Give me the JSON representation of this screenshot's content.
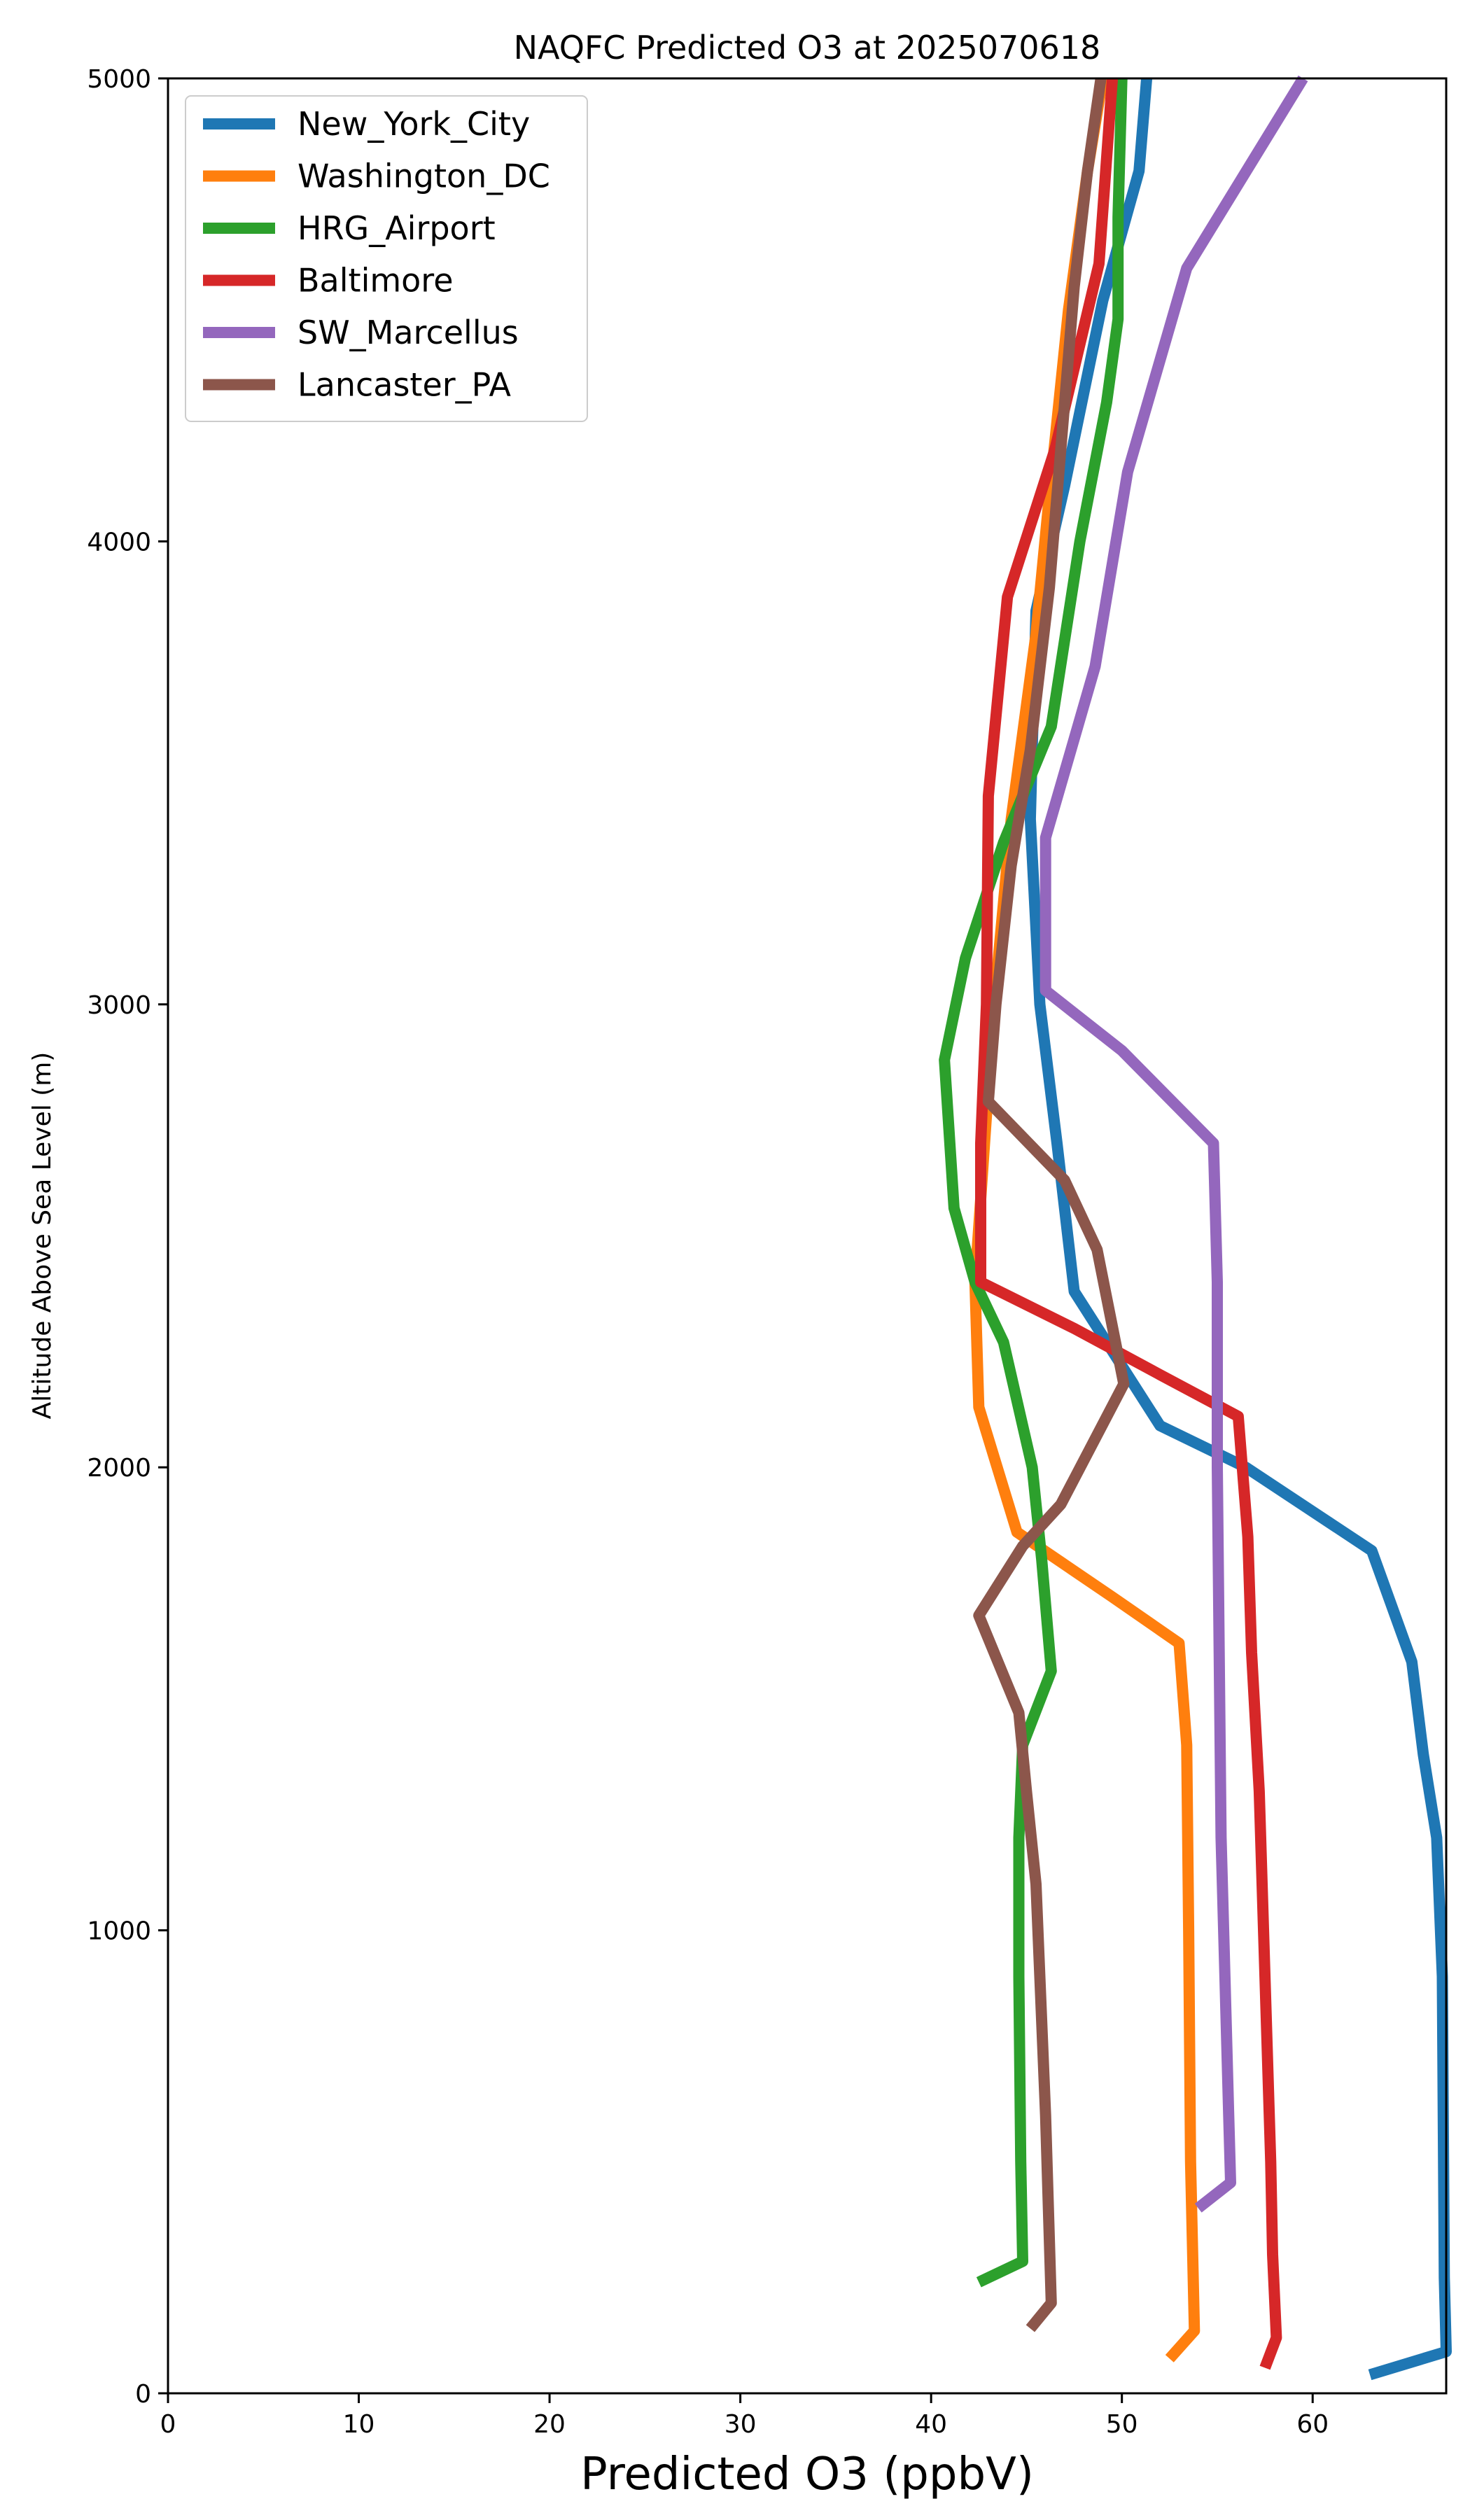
{
  "chart_data": {
    "type": "line",
    "title": "NAQFC Predicted O3 at 2025070618",
    "xlabel": "Predicted O3 (ppbV)",
    "ylabel": "Altitude Above Sea Level (m)",
    "xlim": [
      0,
      67
    ],
    "ylim": [
      0,
      5000
    ],
    "x_ticks": [
      0,
      10,
      20,
      30,
      40,
      50,
      60
    ],
    "y_ticks": [
      0,
      1000,
      2000,
      3000,
      4000,
      5000
    ],
    "grid": false,
    "legend_position": "top-left",
    "series": [
      {
        "name": "New_York_City",
        "color": "#1f77b4",
        "points": [
          [
            63.0,
            40
          ],
          [
            67.0,
            90
          ],
          [
            66.9,
            250
          ],
          [
            66.8,
            900
          ],
          [
            66.5,
            1200
          ],
          [
            65.8,
            1380
          ],
          [
            65.2,
            1580
          ],
          [
            63.1,
            1820
          ],
          [
            56.5,
            2000
          ],
          [
            52.0,
            2090
          ],
          [
            47.5,
            2380
          ],
          [
            46.6,
            2700
          ],
          [
            45.7,
            3000
          ],
          [
            45.2,
            3400
          ],
          [
            45.5,
            3850
          ],
          [
            47.0,
            4120
          ],
          [
            49.0,
            4520
          ],
          [
            50.9,
            4800
          ],
          [
            51.3,
            5000
          ]
        ]
      },
      {
        "name": "Washington_DC",
        "color": "#ff7f0e",
        "points": [
          [
            52.5,
            75
          ],
          [
            53.8,
            135
          ],
          [
            53.6,
            500
          ],
          [
            53.5,
            1000
          ],
          [
            53.4,
            1400
          ],
          [
            53.0,
            1620
          ],
          [
            49.5,
            1720
          ],
          [
            44.5,
            1860
          ],
          [
            42.5,
            2130
          ],
          [
            42.3,
            2400
          ],
          [
            42.8,
            2700
          ],
          [
            43.3,
            3000
          ],
          [
            44.2,
            3400
          ],
          [
            45.5,
            3800
          ],
          [
            46.2,
            4100
          ],
          [
            47.2,
            4500
          ],
          [
            48.2,
            4800
          ],
          [
            49.0,
            5000
          ]
        ]
      },
      {
        "name": "HRG_Airport",
        "color": "#2ca02c",
        "points": [
          [
            42.5,
            240
          ],
          [
            44.8,
            285
          ],
          [
            44.7,
            500
          ],
          [
            44.6,
            900
          ],
          [
            44.6,
            1200
          ],
          [
            44.8,
            1400
          ],
          [
            46.3,
            1560
          ],
          [
            45.8,
            1800
          ],
          [
            45.3,
            2000
          ],
          [
            43.8,
            2270
          ],
          [
            42.3,
            2400
          ],
          [
            41.2,
            2560
          ],
          [
            40.7,
            2880
          ],
          [
            41.8,
            3100
          ],
          [
            43.8,
            3350
          ],
          [
            46.3,
            3600
          ],
          [
            47.8,
            4000
          ],
          [
            49.2,
            4300
          ],
          [
            49.8,
            4480
          ],
          [
            49.8,
            4700
          ],
          [
            50.0,
            5000
          ]
        ]
      },
      {
        "name": "Baltimore",
        "color": "#d62728",
        "points": [
          [
            57.5,
            55
          ],
          [
            58.1,
            120
          ],
          [
            57.9,
            300
          ],
          [
            57.8,
            500
          ],
          [
            57.5,
            900
          ],
          [
            57.2,
            1300
          ],
          [
            56.8,
            1600
          ],
          [
            56.6,
            1850
          ],
          [
            56.1,
            2110
          ],
          [
            52.0,
            2200
          ],
          [
            47.5,
            2300
          ],
          [
            42.6,
            2400
          ],
          [
            42.6,
            2700
          ],
          [
            42.9,
            3000
          ],
          [
            43.0,
            3450
          ],
          [
            44.0,
            3880
          ],
          [
            46.5,
            4200
          ],
          [
            48.8,
            4600
          ],
          [
            49.5,
            5000
          ]
        ]
      },
      {
        "name": "SW_Marcellus",
        "color": "#9467bd",
        "points": [
          [
            54.0,
            400
          ],
          [
            55.7,
            455
          ],
          [
            55.6,
            600
          ],
          [
            55.4,
            900
          ],
          [
            55.2,
            1200
          ],
          [
            55.1,
            1600
          ],
          [
            55.0,
            2000
          ],
          [
            55.0,
            2400
          ],
          [
            54.8,
            2700
          ],
          [
            50.0,
            2900
          ],
          [
            46.0,
            3030
          ],
          [
            46.0,
            3360
          ],
          [
            48.6,
            3730
          ],
          [
            50.3,
            4150
          ],
          [
            53.4,
            4590
          ],
          [
            59.5,
            5000
          ]
        ]
      },
      {
        "name": "Lancaster_PA",
        "color": "#8c564b",
        "points": [
          [
            45.2,
            140
          ],
          [
            46.3,
            195
          ],
          [
            46.0,
            600
          ],
          [
            45.5,
            1100
          ],
          [
            45.0,
            1300
          ],
          [
            44.6,
            1470
          ],
          [
            42.5,
            1680
          ],
          [
            44.8,
            1830
          ],
          [
            46.8,
            1920
          ],
          [
            50.1,
            2180
          ],
          [
            48.7,
            2470
          ],
          [
            47.0,
            2620
          ],
          [
            43.0,
            2790
          ],
          [
            43.4,
            3000
          ],
          [
            44.2,
            3300
          ],
          [
            45.2,
            3550
          ],
          [
            46.2,
            3900
          ],
          [
            46.8,
            4200
          ],
          [
            47.5,
            4550
          ],
          [
            48.2,
            4800
          ],
          [
            48.9,
            5000
          ]
        ]
      }
    ]
  }
}
